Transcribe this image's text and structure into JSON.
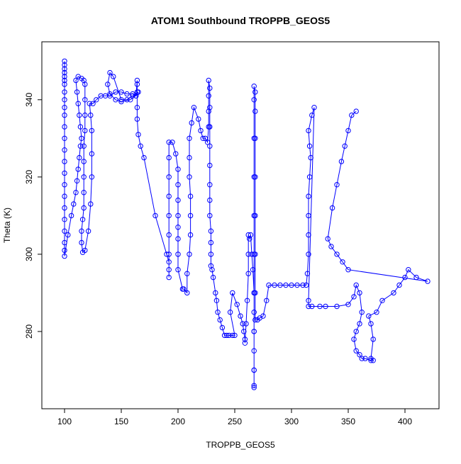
{
  "chart_data": {
    "type": "scatter",
    "style": "points-connected-by-lines",
    "title": "ATOM1 Southbound TROPPB_GEOS5",
    "xlabel": "TROPPB_GEOS5",
    "ylabel": "Theta (K)",
    "xlim": [
      80,
      430
    ],
    "ylim": [
      260,
      355
    ],
    "x_ticks": [
      100,
      150,
      200,
      250,
      300,
      350,
      400
    ],
    "y_ticks": [
      280,
      300,
      320,
      340
    ],
    "x_tick_labels": [
      "100",
      "150",
      "200",
      "250",
      "300",
      "350",
      "400"
    ],
    "y_tick_labels": [
      "280",
      "300",
      "320",
      "340"
    ],
    "grid": false,
    "legend": "none",
    "series_color": "#0000ff",
    "series": [
      {
        "points": [
          [
            100,
            350
          ],
          [
            100,
            349
          ],
          [
            100,
            348
          ],
          [
            100,
            347
          ],
          [
            100,
            346
          ],
          [
            100,
            345
          ],
          [
            100,
            344
          ],
          [
            100,
            342
          ],
          [
            100,
            340
          ],
          [
            100,
            338
          ],
          [
            100,
            336
          ],
          [
            100,
            333
          ],
          [
            100,
            330
          ],
          [
            100,
            327
          ],
          [
            100,
            324
          ],
          [
            100,
            321
          ],
          [
            100,
            318
          ],
          [
            100,
            315
          ],
          [
            100,
            312
          ],
          [
            100,
            309
          ],
          [
            100,
            306
          ],
          [
            100,
            303
          ],
          [
            100,
            301
          ],
          [
            100,
            299.5
          ],
          [
            103,
            305
          ],
          [
            106,
            310
          ],
          [
            108,
            313
          ],
          [
            110,
            316
          ],
          [
            111,
            319
          ],
          [
            112,
            322
          ],
          [
            113,
            325
          ],
          [
            114,
            328
          ],
          [
            115,
            330
          ],
          [
            114,
            333
          ],
          [
            113,
            336
          ],
          [
            112,
            339
          ],
          [
            111,
            342
          ],
          [
            110,
            345
          ],
          [
            112,
            346
          ],
          [
            115,
            345.5
          ],
          [
            117,
            345
          ],
          [
            118,
            344
          ],
          [
            118,
            340
          ],
          [
            118,
            336
          ],
          [
            118,
            332
          ],
          [
            117,
            328
          ],
          [
            117,
            324
          ],
          [
            117,
            320
          ],
          [
            117,
            316
          ],
          [
            117,
            312
          ],
          [
            116,
            309
          ],
          [
            115,
            306
          ],
          [
            115,
            303
          ],
          [
            116,
            300.5
          ],
          [
            118,
            301
          ],
          [
            121,
            306
          ],
          [
            123,
            313
          ],
          [
            124,
            320
          ],
          [
            124,
            326
          ],
          [
            124,
            332
          ],
          [
            123,
            336
          ],
          [
            122,
            339
          ],
          [
            125,
            339
          ],
          [
            128,
            340
          ],
          [
            132,
            341
          ],
          [
            136,
            341
          ],
          [
            140,
            341
          ],
          [
            145,
            342
          ],
          [
            150,
            342
          ],
          [
            155,
            341.5
          ],
          [
            160,
            341.5
          ],
          [
            163,
            341
          ],
          [
            165,
            342
          ],
          [
            158,
            340
          ],
          [
            150,
            339.5
          ],
          [
            145,
            340
          ],
          [
            140,
            341.5
          ],
          [
            138,
            344
          ],
          [
            140,
            347
          ],
          [
            143,
            346
          ],
          [
            150,
            340
          ],
          [
            155,
            340
          ],
          [
            160,
            341
          ],
          [
            163,
            341
          ],
          [
            164,
            345
          ],
          [
            164,
            344
          ],
          [
            164,
            342
          ],
          [
            164,
            338
          ],
          [
            164,
            335
          ],
          [
            165,
            331
          ],
          [
            167,
            328
          ],
          [
            170,
            325
          ],
          [
            180,
            310
          ],
          [
            190,
            300
          ],
          [
            192,
            298
          ],
          [
            192,
            296
          ],
          [
            192,
            294
          ],
          [
            192,
            300
          ],
          [
            192,
            305
          ],
          [
            192,
            310
          ],
          [
            192,
            315
          ],
          [
            192,
            320
          ],
          [
            192,
            325
          ],
          [
            192,
            329
          ],
          [
            195,
            329
          ],
          [
            198,
            326
          ],
          [
            200,
            322
          ],
          [
            200,
            318
          ],
          [
            200,
            314
          ],
          [
            200,
            310
          ],
          [
            200,
            307
          ],
          [
            200,
            304
          ],
          [
            200,
            300
          ],
          [
            200,
            296
          ],
          [
            204,
            291
          ],
          [
            205,
            291
          ],
          [
            208,
            290
          ],
          [
            208,
            295
          ],
          [
            210,
            300
          ],
          [
            211,
            305
          ],
          [
            211,
            310
          ],
          [
            211,
            315
          ],
          [
            210,
            320
          ],
          [
            210,
            325
          ],
          [
            210,
            330
          ],
          [
            212,
            334
          ],
          [
            214,
            338
          ],
          [
            218,
            335
          ],
          [
            220,
            332
          ],
          [
            222,
            330
          ],
          [
            224,
            330
          ],
          [
            226,
            329
          ],
          [
            227,
            333
          ],
          [
            227,
            337
          ],
          [
            227,
            341
          ],
          [
            227,
            345
          ],
          [
            228,
            343
          ],
          [
            228,
            338
          ],
          [
            228,
            333
          ],
          [
            228,
            328
          ],
          [
            228,
            323
          ],
          [
            228,
            318
          ],
          [
            228,
            314
          ],
          [
            228,
            310
          ],
          [
            229,
            306
          ],
          [
            229,
            303
          ],
          [
            229,
            300
          ],
          [
            229,
            297
          ],
          [
            230,
            296
          ],
          [
            231,
            294
          ],
          [
            233,
            290
          ],
          [
            234,
            288
          ],
          [
            235,
            285
          ],
          [
            237,
            283
          ],
          [
            239,
            281
          ],
          [
            241,
            279
          ],
          [
            243,
            279
          ],
          [
            245,
            279
          ],
          [
            248,
            279
          ],
          [
            250,
            279
          ],
          [
            246,
            285
          ],
          [
            248,
            290
          ],
          [
            252,
            287
          ],
          [
            255,
            284
          ],
          [
            257,
            282
          ],
          [
            258,
            280
          ],
          [
            259,
            278
          ],
          [
            259,
            277
          ],
          [
            260,
            282
          ],
          [
            261,
            288
          ],
          [
            262,
            295
          ],
          [
            262,
            300
          ],
          [
            262,
            305
          ],
          [
            263,
            304
          ],
          [
            264,
            305
          ],
          [
            265,
            300
          ],
          [
            266,
            296
          ],
          [
            267,
            290
          ],
          [
            267,
            285
          ],
          [
            267,
            280
          ],
          [
            267,
            275
          ],
          [
            267,
            270
          ],
          [
            267,
            266
          ],
          [
            267,
            265.5
          ],
          [
            267,
            270
          ],
          [
            267,
            280
          ],
          [
            267,
            290
          ],
          [
            267,
            300
          ],
          [
            267,
            310
          ],
          [
            267,
            320
          ],
          [
            267,
            330
          ],
          [
            267,
            340
          ],
          [
            267,
            343.5
          ],
          [
            268,
            342
          ],
          [
            268,
            337
          ],
          [
            268,
            330
          ],
          [
            268,
            320
          ],
          [
            268,
            310
          ],
          [
            268,
            300
          ],
          [
            268,
            290
          ],
          [
            268,
            283
          ],
          [
            270,
            283
          ],
          [
            272,
            283.5
          ],
          [
            275,
            284
          ],
          [
            278,
            288
          ],
          [
            280,
            292
          ],
          [
            285,
            292
          ],
          [
            290,
            292
          ],
          [
            295,
            292
          ],
          [
            300,
            292
          ],
          [
            305,
            292
          ],
          [
            310,
            292
          ],
          [
            313,
            292
          ],
          [
            314,
            295
          ],
          [
            315,
            300
          ],
          [
            315,
            305
          ],
          [
            315,
            310
          ],
          [
            315,
            315
          ],
          [
            316,
            320
          ],
          [
            317,
            325
          ],
          [
            316,
            328
          ],
          [
            315,
            332
          ],
          [
            318,
            336
          ],
          [
            320,
            338
          ],
          [
            315,
            288
          ],
          [
            315,
            286.5
          ],
          [
            318,
            286.5
          ],
          [
            325,
            286.5
          ],
          [
            330,
            286.5
          ],
          [
            340,
            286.5
          ],
          [
            350,
            287
          ],
          [
            355,
            289
          ],
          [
            357,
            292
          ],
          [
            360,
            290
          ],
          [
            362,
            285
          ],
          [
            360,
            282
          ],
          [
            357,
            280
          ],
          [
            355,
            278
          ],
          [
            357,
            275
          ],
          [
            360,
            274
          ],
          [
            362,
            273
          ],
          [
            365,
            273
          ],
          [
            370,
            272.5
          ],
          [
            372,
            272.5
          ],
          [
            370,
            273
          ],
          [
            372,
            278
          ],
          [
            370,
            282
          ],
          [
            368,
            284
          ],
          [
            375,
            285
          ],
          [
            380,
            288
          ],
          [
            390,
            290
          ],
          [
            395,
            292
          ],
          [
            400,
            294
          ],
          [
            403,
            296
          ],
          [
            410,
            294
          ],
          [
            420,
            293
          ],
          [
            350,
            296
          ],
          [
            345,
            298
          ],
          [
            340,
            300
          ],
          [
            335,
            302
          ],
          [
            332,
            304
          ],
          [
            336,
            312
          ],
          [
            340,
            318
          ],
          [
            344,
            324
          ],
          [
            347,
            328
          ],
          [
            350,
            332
          ],
          [
            353,
            336
          ],
          [
            357,
            337
          ]
        ]
      }
    ]
  }
}
